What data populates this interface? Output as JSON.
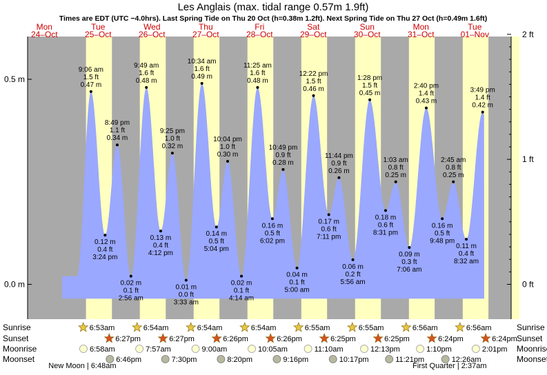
{
  "title": "Les Anglais (max. tidal range 0.57m 1.9ft)",
  "subtitle": "Times are EDT (UTC −4.0hrs). Last Spring Tide on Thu 20 Oct (h=0.38m 1.2ft). Next Spring Tide on Thu 27 Oct (h=0.49m 1.6ft)",
  "colors": {
    "night": "#a9a9a9",
    "day": "#ffffc0",
    "water": "#9aa8ff",
    "holiday_text": "#cc0000",
    "sun_star": "#e8c840",
    "set_star": "#d85020",
    "moon_light": "#ffffd0",
    "moon_dark": "#b8b8a0"
  },
  "days": [
    {
      "dow": "Mon",
      "date": "24–Oct"
    },
    {
      "dow": "Tue",
      "date": "25–Oct"
    },
    {
      "dow": "Wed",
      "date": "26–Oct"
    },
    {
      "dow": "Thu",
      "date": "27–Oct"
    },
    {
      "dow": "Fri",
      "date": "28–Oct"
    },
    {
      "dow": "Sat",
      "date": "29–Oct"
    },
    {
      "dow": "Sun",
      "date": "30–Oct"
    },
    {
      "dow": "Mon",
      "date": "31–Oct"
    },
    {
      "dow": "Tue",
      "date": "01–Nov"
    }
  ],
  "axis": {
    "left_ticks": [
      {
        "value": 0.5,
        "label": "0.5 m"
      },
      {
        "value": 0.0,
        "label": "0.0 m"
      }
    ],
    "right_ticks": [
      {
        "value": 0.6096,
        "label": "2 ft"
      },
      {
        "value": 0.3048,
        "label": "1 ft"
      },
      {
        "value": 0.0,
        "label": "0 ft"
      }
    ]
  },
  "chart_data": {
    "type": "area",
    "title": "Les Anglais (max. tidal range 0.57m 1.9ft)",
    "x_unit": "hours since Mon 24-Oct 00:00 EDT",
    "ylabel": "",
    "ylim": [
      -0.1,
      0.6096
    ],
    "series": [
      {
        "values": [
          {
            "time": "Tue 9:06 am",
            "t": 33.1,
            "m": 0.47,
            "ft": "1.5 ft",
            "type": "high"
          },
          {
            "time": "Tue 3:24 pm",
            "t": 39.4,
            "m": 0.12,
            "ft": "0.4 ft",
            "type": "low"
          },
          {
            "time": "Tue 8:49 pm",
            "t": 44.82,
            "m": 0.34,
            "ft": "1.1 ft",
            "type": "high"
          },
          {
            "time": "Wed 2:56 am",
            "t": 50.93,
            "m": 0.02,
            "ft": "0.1 ft",
            "type": "low"
          },
          {
            "time": "Wed 9:49 am",
            "t": 57.82,
            "m": 0.48,
            "ft": "1.6 ft",
            "type": "high"
          },
          {
            "time": "Wed 4:12 pm",
            "t": 64.2,
            "m": 0.13,
            "ft": "0.4 ft",
            "type": "low"
          },
          {
            "time": "Wed 9:25 pm",
            "t": 69.42,
            "m": 0.32,
            "ft": "1.0 ft",
            "type": "high"
          },
          {
            "time": "Thu 3:33 am",
            "t": 75.55,
            "m": 0.01,
            "ft": "0.0 ft",
            "type": "low"
          },
          {
            "time": "Thu 10:34 am",
            "t": 82.57,
            "m": 0.49,
            "ft": "1.6 ft",
            "type": "high"
          },
          {
            "time": "Thu 5:04 pm",
            "t": 89.07,
            "m": 0.14,
            "ft": "0.5 ft",
            "type": "low"
          },
          {
            "time": "Thu 10:04 pm",
            "t": 94.07,
            "m": 0.3,
            "ft": "1.0 ft",
            "type": "high"
          },
          {
            "time": "Fri 4:14 am",
            "t": 100.23,
            "m": 0.02,
            "ft": "0.1 ft",
            "type": "low"
          },
          {
            "time": "Fri 11:25 am",
            "t": 107.42,
            "m": 0.48,
            "ft": "1.6 ft",
            "type": "high"
          },
          {
            "time": "Fri 6:02 pm",
            "t": 114.03,
            "m": 0.16,
            "ft": "0.5 ft",
            "type": "low"
          },
          {
            "time": "Fri 10:49 pm",
            "t": 118.82,
            "m": 0.28,
            "ft": "0.9 ft",
            "type": "high"
          },
          {
            "time": "Sat 5:00 am",
            "t": 125.0,
            "m": 0.04,
            "ft": "0.1 ft",
            "type": "low"
          },
          {
            "time": "Sat 12:22 pm",
            "t": 132.37,
            "m": 0.46,
            "ft": "1.5 ft",
            "type": "high"
          },
          {
            "time": "Sat 7:11 pm",
            "t": 139.18,
            "m": 0.17,
            "ft": "0.6 ft",
            "type": "low"
          },
          {
            "time": "Sat 11:44 pm",
            "t": 143.73,
            "m": 0.26,
            "ft": "0.9 ft",
            "type": "high"
          },
          {
            "time": "Sun 5:56 am",
            "t": 149.93,
            "m": 0.06,
            "ft": "0.2 ft",
            "type": "low"
          },
          {
            "time": "Sun 1:28 pm",
            "t": 157.47,
            "m": 0.45,
            "ft": "1.5 ft",
            "type": "high"
          },
          {
            "time": "Sun 8:31 pm",
            "t": 164.52,
            "m": 0.18,
            "ft": "0.6 ft",
            "type": "low"
          },
          {
            "time": "Mon 1:03 am",
            "t": 169.05,
            "m": 0.25,
            "ft": "0.8 ft",
            "type": "high"
          },
          {
            "time": "Mon 7:06 am",
            "t": 175.1,
            "m": 0.09,
            "ft": "0.3 ft",
            "type": "low"
          },
          {
            "time": "Mon 2:40 pm",
            "t": 182.67,
            "m": 0.43,
            "ft": "1.4 ft",
            "type": "high"
          },
          {
            "time": "Mon 9:48 pm",
            "t": 189.8,
            "m": 0.16,
            "ft": "0.5 ft",
            "type": "low"
          },
          {
            "time": "Tue 2:45 am",
            "t": 194.75,
            "m": 0.25,
            "ft": "0.8 ft",
            "type": "high"
          },
          {
            "time": "Tue 8:32 am",
            "t": 200.53,
            "m": 0.11,
            "ft": "0.4 ft",
            "type": "low"
          },
          {
            "time": "Tue 3:49 pm",
            "t": 207.82,
            "m": 0.42,
            "ft": "1.4 ft",
            "type": "high"
          }
        ]
      }
    ]
  },
  "daylight": [
    {
      "rise": 30.88,
      "set": 42.45
    },
    {
      "rise": 54.9,
      "set": 66.45
    },
    {
      "rise": 78.9,
      "set": 90.43
    },
    {
      "rise": 102.9,
      "set": 114.43
    },
    {
      "rise": 126.92,
      "set": 138.42
    },
    {
      "rise": 150.92,
      "set": 162.42
    },
    {
      "rise": 174.93,
      "set": 186.4
    },
    {
      "rise": 198.93,
      "set": 210.4
    }
  ],
  "almanac": {
    "row_labels": [
      "Sunrise",
      "Sunset",
      "Moonrise",
      "Moonset"
    ],
    "sunrise": [
      {
        "t": 30.88,
        "label": "6:53am"
      },
      {
        "t": 54.9,
        "label": "6:54am"
      },
      {
        "t": 78.9,
        "label": "6:54am"
      },
      {
        "t": 102.9,
        "label": "6:54am"
      },
      {
        "t": 126.92,
        "label": "6:55am"
      },
      {
        "t": 150.92,
        "label": "6:55am"
      },
      {
        "t": 174.93,
        "label": "6:56am"
      },
      {
        "t": 198.93,
        "label": "6:56am"
      }
    ],
    "sunset": [
      {
        "t": 42.45,
        "label": "6:27pm"
      },
      {
        "t": 66.45,
        "label": "6:27pm"
      },
      {
        "t": 90.43,
        "label": "6:26pm"
      },
      {
        "t": 114.43,
        "label": "6:26pm"
      },
      {
        "t": 138.42,
        "label": "6:25pm"
      },
      {
        "t": 162.42,
        "label": "6:25pm"
      },
      {
        "t": 186.4,
        "label": "6:24pm"
      },
      {
        "t": 210.4,
        "label": "6:24pm"
      }
    ],
    "moonrise": [
      {
        "t": 30.97,
        "label": "6:58am"
      },
      {
        "t": 55.95,
        "label": "7:57am"
      },
      {
        "t": 81.0,
        "label": "9:00am"
      },
      {
        "t": 106.08,
        "label": "10:05am"
      },
      {
        "t": 131.17,
        "label": "11:10am"
      },
      {
        "t": 156.22,
        "label": "12:13pm"
      },
      {
        "t": 181.17,
        "label": "1:10pm"
      },
      {
        "t": 206.02,
        "label": "2:01pm"
      }
    ],
    "moonset": [
      {
        "t": 42.77,
        "label": "6:46pm"
      },
      {
        "t": 67.5,
        "label": "7:30pm"
      },
      {
        "t": 92.33,
        "label": "8:20pm"
      },
      {
        "t": 117.27,
        "label": "9:16pm"
      },
      {
        "t": 142.28,
        "label": "10:17pm"
      },
      {
        "t": 167.35,
        "label": "11:21pm"
      },
      {
        "t": 192.43,
        "label": "12:26am"
      }
    ],
    "moon_phases": [
      {
        "t": 30.8,
        "label": "New Moon | 6:48am"
      },
      {
        "t": 194.62,
        "label": "First Quarter | 2:37am"
      }
    ]
  }
}
